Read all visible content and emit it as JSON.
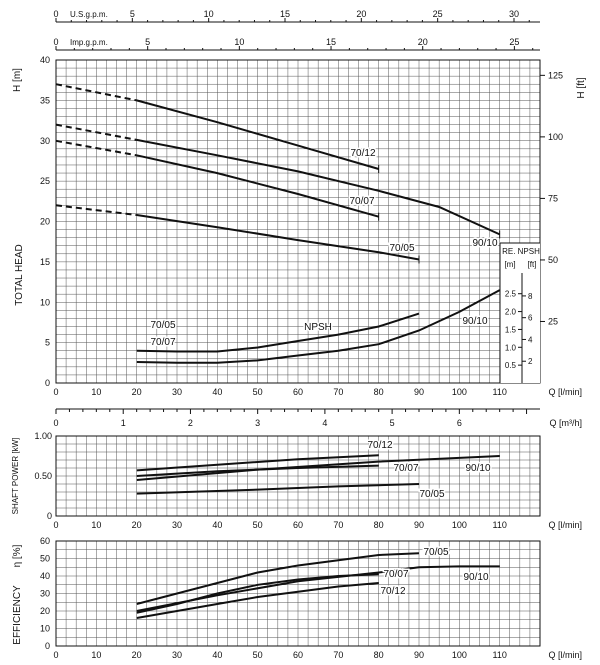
{
  "chart_data": [
    {
      "id": "head",
      "type": "line",
      "ylabel_left": "TOTAL HEAD",
      "y_unit_left": "H [m]",
      "y_unit_right": "H [ft]",
      "xlabel": "Q [l/min]",
      "xlim": [
        0,
        120
      ],
      "ylim": [
        0,
        40
      ],
      "x_ticks": [
        0,
        10,
        20,
        30,
        40,
        50,
        60,
        70,
        80,
        90,
        100,
        110
      ],
      "y_ticks": [
        0,
        5,
        10,
        15,
        20,
        25,
        30,
        35,
        40
      ],
      "y_ticks_ft": [
        25,
        50,
        75,
        100,
        125
      ],
      "top_axes": [
        {
          "label": "U.S.g.p.m.",
          "lpm_per_unit": 3.785,
          "ticks": [
            0,
            5,
            10,
            15,
            20,
            25,
            30
          ]
        },
        {
          "label": "Imp.g.p.m.",
          "lpm_per_unit": 4.546,
          "ticks": [
            0,
            5,
            10,
            15,
            20,
            25
          ]
        }
      ],
      "npsh_box": {
        "title_1": "RE. NPSH",
        "unit_m": "[m]",
        "unit_ft": "[ft]",
        "m_ticks": [
          "0.5",
          "1.0",
          "1.5",
          "2.0",
          "2.5"
        ],
        "ft_ticks": [
          "2",
          "4",
          "6",
          "8"
        ]
      },
      "series": [
        {
          "name": "70/12",
          "dashed_until": 20,
          "points": [
            [
              0,
              37
            ],
            [
              20,
              35
            ],
            [
              40,
              32.3
            ],
            [
              60,
              29.4
            ],
            [
              80,
              26.5
            ]
          ]
        },
        {
          "name": "90/10",
          "dashed_until": 20,
          "points": [
            [
              0,
              32
            ],
            [
              20,
              30.1
            ],
            [
              40,
              28.2
            ],
            [
              60,
              26.2
            ],
            [
              80,
              23.8
            ],
            [
              95,
              21.8
            ],
            [
              110,
              18.4
            ]
          ]
        },
        {
          "name": "70/07",
          "dashed_until": 20,
          "points": [
            [
              0,
              30
            ],
            [
              20,
              28.2
            ],
            [
              40,
              26
            ],
            [
              60,
              23.4
            ],
            [
              80,
              20.6
            ]
          ]
        },
        {
          "name": "70/05",
          "dashed_until": 20,
          "points": [
            [
              0,
              22
            ],
            [
              20,
              20.8
            ],
            [
              40,
              19.3
            ],
            [
              60,
              17.7
            ],
            [
              80,
              16.2
            ],
            [
              90,
              15.3
            ]
          ]
        },
        {
          "name": "NPSH",
          "points": [
            [
              20,
              4
            ],
            [
              30,
              3.9
            ],
            [
              40,
              3.9
            ],
            [
              50,
              4.4
            ],
            [
              60,
              5.2
            ],
            [
              70,
              6
            ],
            [
              80,
              7
            ],
            [
              90,
              8.6
            ]
          ]
        },
        {
          "name": "NPSH 90/10",
          "points": [
            [
              20,
              2.6
            ],
            [
              30,
              2.5
            ],
            [
              40,
              2.5
            ],
            [
              50,
              2.8
            ],
            [
              60,
              3.4
            ],
            [
              70,
              4
            ],
            [
              80,
              4.8
            ],
            [
              90,
              6.5
            ],
            [
              100,
              8.8
            ],
            [
              110,
              11.5
            ]
          ]
        }
      ],
      "curve_labels": [
        "70/12",
        "70/07",
        "70/05",
        "90/10",
        "90/10",
        "70/05",
        "70/07",
        "NPSH"
      ]
    },
    {
      "id": "flow_m3h",
      "xlabel": "Q [m³/h]",
      "ticks": [
        0,
        1,
        2,
        3,
        4,
        5,
        6
      ]
    },
    {
      "id": "power",
      "type": "line",
      "ylabel": "SHAFT POWER  [kW]",
      "xlabel": "Q [l/min]",
      "xlim": [
        0,
        120
      ],
      "ylim": [
        0,
        1
      ],
      "y_ticks": [
        "0",
        "0.50",
        "1.00"
      ],
      "x_ticks": [
        0,
        10,
        20,
        30,
        40,
        50,
        60,
        70,
        80,
        90,
        100,
        110
      ],
      "series": [
        {
          "name": "70/12",
          "points": [
            [
              20,
              0.57
            ],
            [
              40,
              0.64
            ],
            [
              60,
              0.71
            ],
            [
              80,
              0.76
            ]
          ]
        },
        {
          "name": "70/07",
          "points": [
            [
              20,
              0.5
            ],
            [
              40,
              0.56
            ],
            [
              60,
              0.6
            ],
            [
              80,
              0.63
            ]
          ]
        },
        {
          "name": "90/10",
          "points": [
            [
              20,
              0.45
            ],
            [
              50,
              0.58
            ],
            [
              80,
              0.68
            ],
            [
              110,
              0.75
            ]
          ]
        },
        {
          "name": "70/05",
          "points": [
            [
              20,
              0.28
            ],
            [
              50,
              0.33
            ],
            [
              70,
              0.37
            ],
            [
              90,
              0.4
            ]
          ]
        }
      ],
      "curve_labels": [
        "70/12",
        "70/07",
        "90/10",
        "70/05"
      ]
    },
    {
      "id": "efficiency",
      "type": "line",
      "ylabel_1": "EFFICIENCY",
      "ylabel_2": "η  [%]",
      "xlabel": "Q [l/min]",
      "xlim": [
        0,
        120
      ],
      "ylim": [
        0,
        60
      ],
      "y_ticks": [
        0,
        10,
        20,
        30,
        40,
        50,
        60
      ],
      "x_ticks": [
        0,
        10,
        20,
        30,
        40,
        50,
        60,
        70,
        80,
        90,
        100,
        110
      ],
      "series": [
        {
          "name": "70/05",
          "points": [
            [
              20,
              24
            ],
            [
              30,
              30
            ],
            [
              40,
              36
            ],
            [
              50,
              42
            ],
            [
              60,
              46
            ],
            [
              70,
              49
            ],
            [
              80,
              52
            ],
            [
              90,
              53
            ]
          ]
        },
        {
          "name": "90/10",
          "points": [
            [
              20,
              20
            ],
            [
              40,
              29
            ],
            [
              60,
              37
            ],
            [
              80,
              42
            ],
            [
              90,
              45
            ],
            [
              100,
              45.5
            ],
            [
              110,
              45.5
            ]
          ]
        },
        {
          "name": "70/07",
          "points": [
            [
              20,
              19
            ],
            [
              30,
              24
            ],
            [
              40,
              30
            ],
            [
              50,
              35
            ],
            [
              60,
              38
            ],
            [
              70,
              40
            ],
            [
              80,
              41
            ]
          ]
        },
        {
          "name": "70/12",
          "points": [
            [
              20,
              16
            ],
            [
              30,
              20
            ],
            [
              40,
              24
            ],
            [
              50,
              28
            ],
            [
              60,
              31
            ],
            [
              70,
              34
            ],
            [
              80,
              36
            ]
          ]
        }
      ],
      "curve_labels": [
        "70/05",
        "70/07",
        "90/10",
        "70/12"
      ]
    }
  ]
}
